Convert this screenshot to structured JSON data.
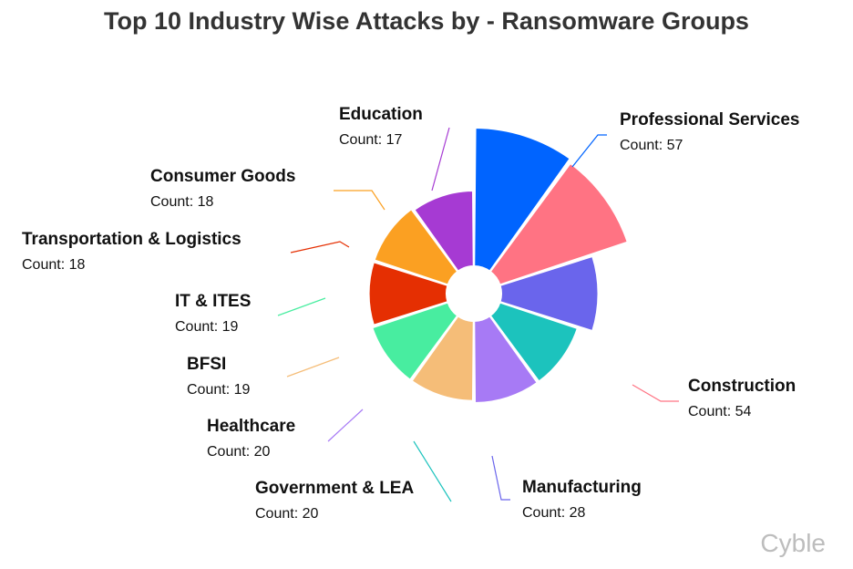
{
  "chart_data": {
    "type": "pie",
    "subtype": "rose",
    "title": "Top 10 Industry Wise Attacks by - Ransomware Groups",
    "count_prefix": "Count: ",
    "slices": [
      {
        "label": "Professional Services",
        "value": 57,
        "color": "#0064ff"
      },
      {
        "label": "Construction",
        "value": 54,
        "color": "#ff7383"
      },
      {
        "label": "Manufacturing",
        "value": 28,
        "color": "#6a65ec"
      },
      {
        "label": "Government & LEA",
        "value": 20,
        "color": "#1cc3bd"
      },
      {
        "label": "Healthcare",
        "value": 20,
        "color": "#a77af5"
      },
      {
        "label": "BFSI",
        "value": 19,
        "color": "#f5bd78"
      },
      {
        "label": "IT & ITES",
        "value": 19,
        "color": "#48eda0"
      },
      {
        "label": "Transportation & Logistics",
        "value": 18,
        "color": "#e52f02"
      },
      {
        "label": "Consumer Goods",
        "value": 18,
        "color": "#fba022"
      },
      {
        "label": "Education",
        "value": 17,
        "color": "#a63ad3"
      }
    ]
  },
  "watermark": "Cyble"
}
